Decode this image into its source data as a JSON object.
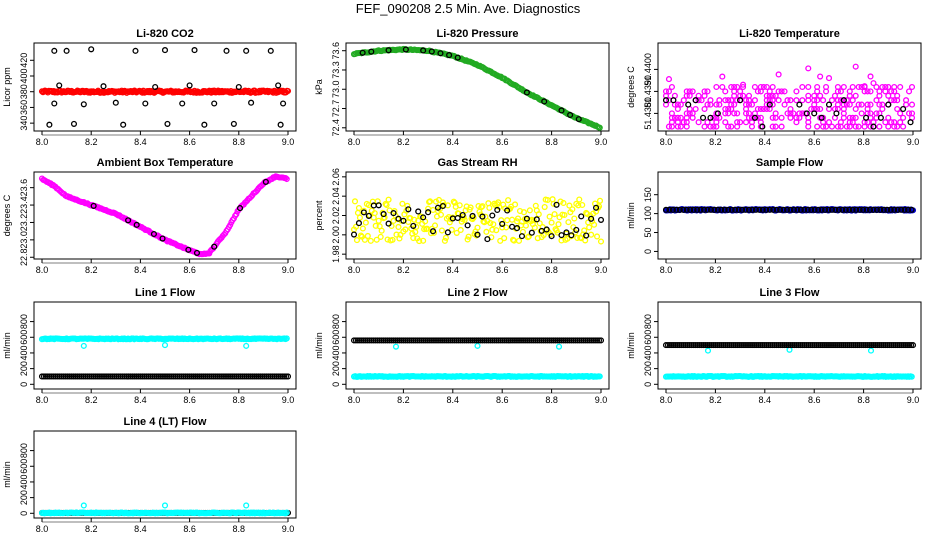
{
  "title": "FEF_090208  2.5 Min. Ave. Diagnostics",
  "colors": {
    "black": "#000000",
    "red": "#ff0000",
    "green": "#22aa22",
    "magenta": "#ff00ff",
    "yellow": "#ffff00",
    "cyan": "#00ffff",
    "blue": "#0000cc"
  },
  "chart_data": [
    {
      "id": "co2",
      "type": "scatter",
      "title": "Li-820 CO2",
      "ylabel": "Licor ppm",
      "xlim": [
        8.0,
        9.0
      ],
      "ylim": [
        330,
        442
      ],
      "xticks": [
        8.0,
        8.2,
        8.4,
        8.6,
        8.8,
        9.0
      ],
      "xtick_labels": [
        "8.0",
        "8.2",
        "8.4",
        "8.6",
        "8.8",
        "9.0"
      ],
      "yticks": [
        340,
        380,
        420
      ],
      "ytick_labels": [
        "340",
        "380",
        "420"
      ],
      "ytick_labels_minor": [
        "360",
        "400"
      ],
      "series": [
        {
          "name": "continuous",
          "color": "red",
          "mode": "band",
          "center": 380,
          "width": 3
        },
        {
          "name": "outliers",
          "color": "black",
          "mode": "scatter",
          "values": [
            {
              "x": 8.05,
              "y": 432
            },
            {
              "x": 8.1,
              "y": 432
            },
            {
              "x": 8.2,
              "y": 434
            },
            {
              "x": 8.38,
              "y": 432
            },
            {
              "x": 8.5,
              "y": 433
            },
            {
              "x": 8.62,
              "y": 433
            },
            {
              "x": 8.75,
              "y": 432
            },
            {
              "x": 8.83,
              "y": 432
            },
            {
              "x": 8.93,
              "y": 432
            },
            {
              "x": 8.07,
              "y": 388
            },
            {
              "x": 8.25,
              "y": 387
            },
            {
              "x": 8.46,
              "y": 386
            },
            {
              "x": 8.6,
              "y": 388
            },
            {
              "x": 8.8,
              "y": 386
            },
            {
              "x": 8.96,
              "y": 388
            },
            {
              "x": 8.05,
              "y": 365
            },
            {
              "x": 8.17,
              "y": 364
            },
            {
              "x": 8.3,
              "y": 366
            },
            {
              "x": 8.42,
              "y": 365
            },
            {
              "x": 8.57,
              "y": 365
            },
            {
              "x": 8.7,
              "y": 365
            },
            {
              "x": 8.85,
              "y": 366
            },
            {
              "x": 8.98,
              "y": 365
            },
            {
              "x": 8.03,
              "y": 338
            },
            {
              "x": 8.13,
              "y": 339
            },
            {
              "x": 8.33,
              "y": 338
            },
            {
              "x": 8.51,
              "y": 339
            },
            {
              "x": 8.66,
              "y": 338
            },
            {
              "x": 8.78,
              "y": 339
            },
            {
              "x": 8.97,
              "y": 338
            }
          ]
        }
      ]
    },
    {
      "id": "pressure",
      "type": "scatter",
      "title": "Li-820 Pressure",
      "ylabel": "kPa",
      "xlim": [
        8.0,
        9.0
      ],
      "ylim": [
        72.35,
        73.72
      ],
      "xticks": [
        8.0,
        8.2,
        8.4,
        8.6,
        8.8,
        9.0
      ],
      "xtick_labels": [
        "8.0",
        "8.2",
        "8.4",
        "8.6",
        "8.8",
        "9.0"
      ],
      "yticks": [
        72.4,
        73.0,
        73.6
      ],
      "ytick_labels": [
        "72.4",
        "73.0",
        "73.6"
      ],
      "ytick_labels_minor": [
        "72.7",
        "73.3"
      ],
      "series": [
        {
          "name": "pressure",
          "color": "green",
          "mode": "curve",
          "values": [
            [
              8.0,
              73.55
            ],
            [
              8.1,
              73.6
            ],
            [
              8.2,
              73.62
            ],
            [
              8.3,
              73.6
            ],
            [
              8.4,
              73.52
            ],
            [
              8.5,
              73.38
            ],
            [
              8.6,
              73.18
            ],
            [
              8.7,
              72.95
            ],
            [
              8.8,
              72.75
            ],
            [
              8.9,
              72.55
            ],
            [
              9.0,
              72.4
            ]
          ]
        },
        {
          "name": "black",
          "color": "black",
          "mode": "curve-sparse",
          "values": [
            [
              8.0,
              73.55
            ],
            [
              8.1,
              73.6
            ],
            [
              8.2,
              73.62
            ],
            [
              8.3,
              73.6
            ],
            [
              8.4,
              73.52
            ],
            [
              8.5,
              73.38
            ],
            [
              8.6,
              73.18
            ],
            [
              8.7,
              72.95
            ],
            [
              8.8,
              72.75
            ],
            [
              8.9,
              72.55
            ],
            [
              9.0,
              72.4
            ]
          ]
        }
      ]
    },
    {
      "id": "licor-temp",
      "type": "scatter",
      "title": "Li-820 Temperature",
      "ylabel": "degrees C",
      "xlim": [
        8.0,
        9.0
      ],
      "ylim": [
        51.4372,
        51.4412
      ],
      "xticks": [
        8.0,
        8.2,
        8.4,
        8.6,
        8.8,
        9.0
      ],
      "xtick_labels": [
        "8.0",
        "8.2",
        "8.4",
        "8.6",
        "8.8",
        "9.0"
      ],
      "yticks": [
        51.438,
        51.44
      ],
      "ytick_labels": [
        "51.4380",
        "51.4400"
      ],
      "ytick_labels_minor": [
        "51.4390"
      ],
      "series": [
        {
          "name": "temp",
          "color": "magenta",
          "mode": "quantized",
          "levels": [
            51.4374,
            51.4376,
            51.4378,
            51.438,
            51.4382,
            51.4384,
            51.4386,
            51.4388,
            51.439,
            51.4392
          ]
        },
        {
          "name": "black",
          "color": "black",
          "mode": "quantized-sparse",
          "levels": [
            51.4374,
            51.4376,
            51.4378,
            51.438,
            51.4382,
            51.4384,
            51.4386,
            51.4388
          ]
        }
      ]
    },
    {
      "id": "ambient-box",
      "type": "scatter",
      "title": "Ambient Box Temperature",
      "ylabel": "degrees C",
      "xlim": [
        8.0,
        9.0
      ],
      "ylim": [
        22.78,
        23.78
      ],
      "xticks": [
        8.0,
        8.2,
        8.4,
        8.6,
        8.8,
        9.0
      ],
      "xtick_labels": [
        "8.0",
        "8.2",
        "8.4",
        "8.6",
        "8.8",
        "9.0"
      ],
      "yticks": [
        22.8,
        23.2,
        23.6
      ],
      "ytick_labels": [
        "22.8",
        "23.2",
        "23.6"
      ],
      "ytick_labels_minor": [
        "23.0",
        "23.4"
      ],
      "series": [
        {
          "name": "box",
          "color": "magenta",
          "mode": "curve",
          "values": [
            [
              8.0,
              23.7
            ],
            [
              8.05,
              23.62
            ],
            [
              8.1,
              23.5
            ],
            [
              8.2,
              23.4
            ],
            [
              8.3,
              23.3
            ],
            [
              8.4,
              23.15
            ],
            [
              8.5,
              23.0
            ],
            [
              8.6,
              22.88
            ],
            [
              8.65,
              22.83
            ],
            [
              8.68,
              22.85
            ],
            [
              8.75,
              23.1
            ],
            [
              8.8,
              23.35
            ],
            [
              8.85,
              23.5
            ],
            [
              8.9,
              23.65
            ],
            [
              8.95,
              23.73
            ],
            [
              9.0,
              23.7
            ]
          ]
        },
        {
          "name": "black",
          "color": "black",
          "mode": "curve-sparse",
          "values": [
            [
              8.0,
              23.7
            ],
            [
              8.05,
              23.62
            ],
            [
              8.1,
              23.5
            ],
            [
              8.2,
              23.4
            ],
            [
              8.3,
              23.3
            ],
            [
              8.4,
              23.15
            ],
            [
              8.5,
              23.0
            ],
            [
              8.6,
              22.88
            ],
            [
              8.65,
              22.83
            ],
            [
              8.68,
              22.85
            ],
            [
              8.75,
              23.1
            ],
            [
              8.8,
              23.35
            ],
            [
              8.85,
              23.5
            ],
            [
              8.9,
              23.65
            ],
            [
              8.95,
              23.73
            ],
            [
              9.0,
              23.7
            ]
          ]
        }
      ]
    },
    {
      "id": "rh",
      "type": "scatter",
      "title": "Gas Stream RH",
      "ylabel": "percent",
      "xlim": [
        8.0,
        9.0
      ],
      "ylim": [
        1.975,
        2.065
      ],
      "xticks": [
        8.0,
        8.2,
        8.4,
        8.6,
        8.8,
        9.0
      ],
      "xtick_labels": [
        "8.0",
        "8.2",
        "8.4",
        "8.6",
        "8.8",
        "9.0"
      ],
      "yticks": [
        1.98,
        2.02,
        2.06
      ],
      "ytick_labels": [
        "1.98",
        "2.02",
        "2.06"
      ],
      "ytick_labels_minor": [
        "2.00",
        "2.04"
      ],
      "series": [
        {
          "name": "rh",
          "color": "yellow",
          "mode": "noise",
          "center": 2.015,
          "spread": 0.022
        },
        {
          "name": "black",
          "color": "black",
          "mode": "noise-sparse",
          "center": 2.015,
          "spread": 0.02
        }
      ]
    },
    {
      "id": "sample-flow",
      "type": "scatter",
      "title": "Sample Flow",
      "ylabel": "ml/min",
      "xlim": [
        8.0,
        9.0
      ],
      "ylim": [
        -20,
        210
      ],
      "xticks": [
        8.0,
        8.2,
        8.4,
        8.6,
        8.8,
        9.0
      ],
      "xtick_labels": [
        "8.0",
        "8.2",
        "8.4",
        "8.6",
        "8.8",
        "9.0"
      ],
      "yticks": [
        0,
        100
      ],
      "ytick_labels": [
        "0",
        "100"
      ],
      "ytick_labels_minor": [
        "50",
        "150"
      ],
      "series": [
        {
          "name": "sample",
          "color": "blue",
          "mode": "band",
          "center": 110,
          "width": 4
        },
        {
          "name": "black",
          "color": "black",
          "mode": "flat-sparse",
          "center": 110
        }
      ]
    },
    {
      "id": "line1",
      "type": "scatter",
      "title": "Line 1 Flow",
      "ylabel": "ml/min",
      "xlim": [
        8.0,
        9.0
      ],
      "ylim": [
        -60,
        1050
      ],
      "xticks": [
        8.0,
        8.2,
        8.4,
        8.6,
        8.8,
        9.0
      ],
      "xtick_labels": [
        "8.0",
        "8.2",
        "8.4",
        "8.6",
        "8.8",
        "9.0"
      ],
      "yticks": [
        0,
        400,
        800
      ],
      "ytick_labels": [
        "0",
        "400",
        "800"
      ],
      "ytick_labels_minor": [
        "200",
        "600"
      ],
      "series": [
        {
          "name": "cyan-high",
          "color": "cyan",
          "mode": "flat",
          "center": 580
        },
        {
          "name": "cyan-dips",
          "color": "cyan",
          "mode": "scatter",
          "values": [
            {
              "x": 8.17,
              "y": 490
            },
            {
              "x": 8.5,
              "y": 500
            },
            {
              "x": 8.83,
              "y": 490
            }
          ]
        },
        {
          "name": "black-low",
          "color": "black",
          "mode": "flat-dense",
          "center": 100
        }
      ]
    },
    {
      "id": "line2",
      "type": "scatter",
      "title": "Line 2 Flow",
      "ylabel": "ml/min",
      "xlim": [
        8.0,
        9.0
      ],
      "ylim": [
        -60,
        1050
      ],
      "xticks": [
        8.0,
        8.2,
        8.4,
        8.6,
        8.8,
        9.0
      ],
      "xtick_labels": [
        "8.0",
        "8.2",
        "8.4",
        "8.6",
        "8.8",
        "9.0"
      ],
      "yticks": [
        0,
        400,
        800
      ],
      "ytick_labels": [
        "0",
        "400",
        "800"
      ],
      "ytick_labels_minor": [
        "200",
        "600"
      ],
      "series": [
        {
          "name": "cyan-low",
          "color": "cyan",
          "mode": "flat",
          "center": 100
        },
        {
          "name": "cyan-dips",
          "color": "cyan",
          "mode": "scatter",
          "values": [
            {
              "x": 8.17,
              "y": 480
            },
            {
              "x": 8.5,
              "y": 490
            },
            {
              "x": 8.83,
              "y": 480
            }
          ]
        },
        {
          "name": "black-high",
          "color": "black",
          "mode": "flat-dense",
          "center": 560
        }
      ]
    },
    {
      "id": "line3",
      "type": "scatter",
      "title": "Line 3 Flow",
      "ylabel": "ml/min",
      "xlim": [
        8.0,
        9.0
      ],
      "ylim": [
        -60,
        1050
      ],
      "xticks": [
        8.0,
        8.2,
        8.4,
        8.6,
        8.8,
        9.0
      ],
      "xtick_labels": [
        "8.0",
        "8.2",
        "8.4",
        "8.6",
        "8.8",
        "9.0"
      ],
      "yticks": [
        0,
        400,
        800
      ],
      "ytick_labels": [
        "0",
        "400",
        "800"
      ],
      "ytick_labels_minor": [
        "200",
        "600"
      ],
      "series": [
        {
          "name": "cyan-low",
          "color": "cyan",
          "mode": "flat",
          "center": 100
        },
        {
          "name": "cyan-dips",
          "color": "cyan",
          "mode": "scatter",
          "values": [
            {
              "x": 8.17,
              "y": 430
            },
            {
              "x": 8.5,
              "y": 440
            },
            {
              "x": 8.83,
              "y": 430
            }
          ]
        },
        {
          "name": "black-high",
          "color": "black",
          "mode": "flat-dense",
          "center": 500
        }
      ]
    },
    {
      "id": "line4",
      "type": "scatter",
      "title": "Line 4 (LT) Flow",
      "ylabel": "ml/min",
      "xlim": [
        8.0,
        9.0
      ],
      "ylim": [
        -60,
        1050
      ],
      "xticks": [
        8.0,
        8.2,
        8.4,
        8.6,
        8.8,
        9.0
      ],
      "xtick_labels": [
        "8.0",
        "8.2",
        "8.4",
        "8.6",
        "8.8",
        "9.0"
      ],
      "yticks": [
        0,
        400,
        800
      ],
      "ytick_labels": [
        "0",
        "400",
        "800"
      ],
      "ytick_labels_minor": [
        "200",
        "600"
      ],
      "series": [
        {
          "name": "black-zero",
          "color": "black",
          "mode": "flat-dense",
          "center": 5
        },
        {
          "name": "cyan-zero",
          "color": "cyan",
          "mode": "flat",
          "center": 5
        },
        {
          "name": "cyan-spikes",
          "color": "cyan",
          "mode": "scatter",
          "values": [
            {
              "x": 8.17,
              "y": 100
            },
            {
              "x": 8.5,
              "y": 100
            },
            {
              "x": 8.83,
              "y": 100
            }
          ]
        }
      ]
    }
  ]
}
